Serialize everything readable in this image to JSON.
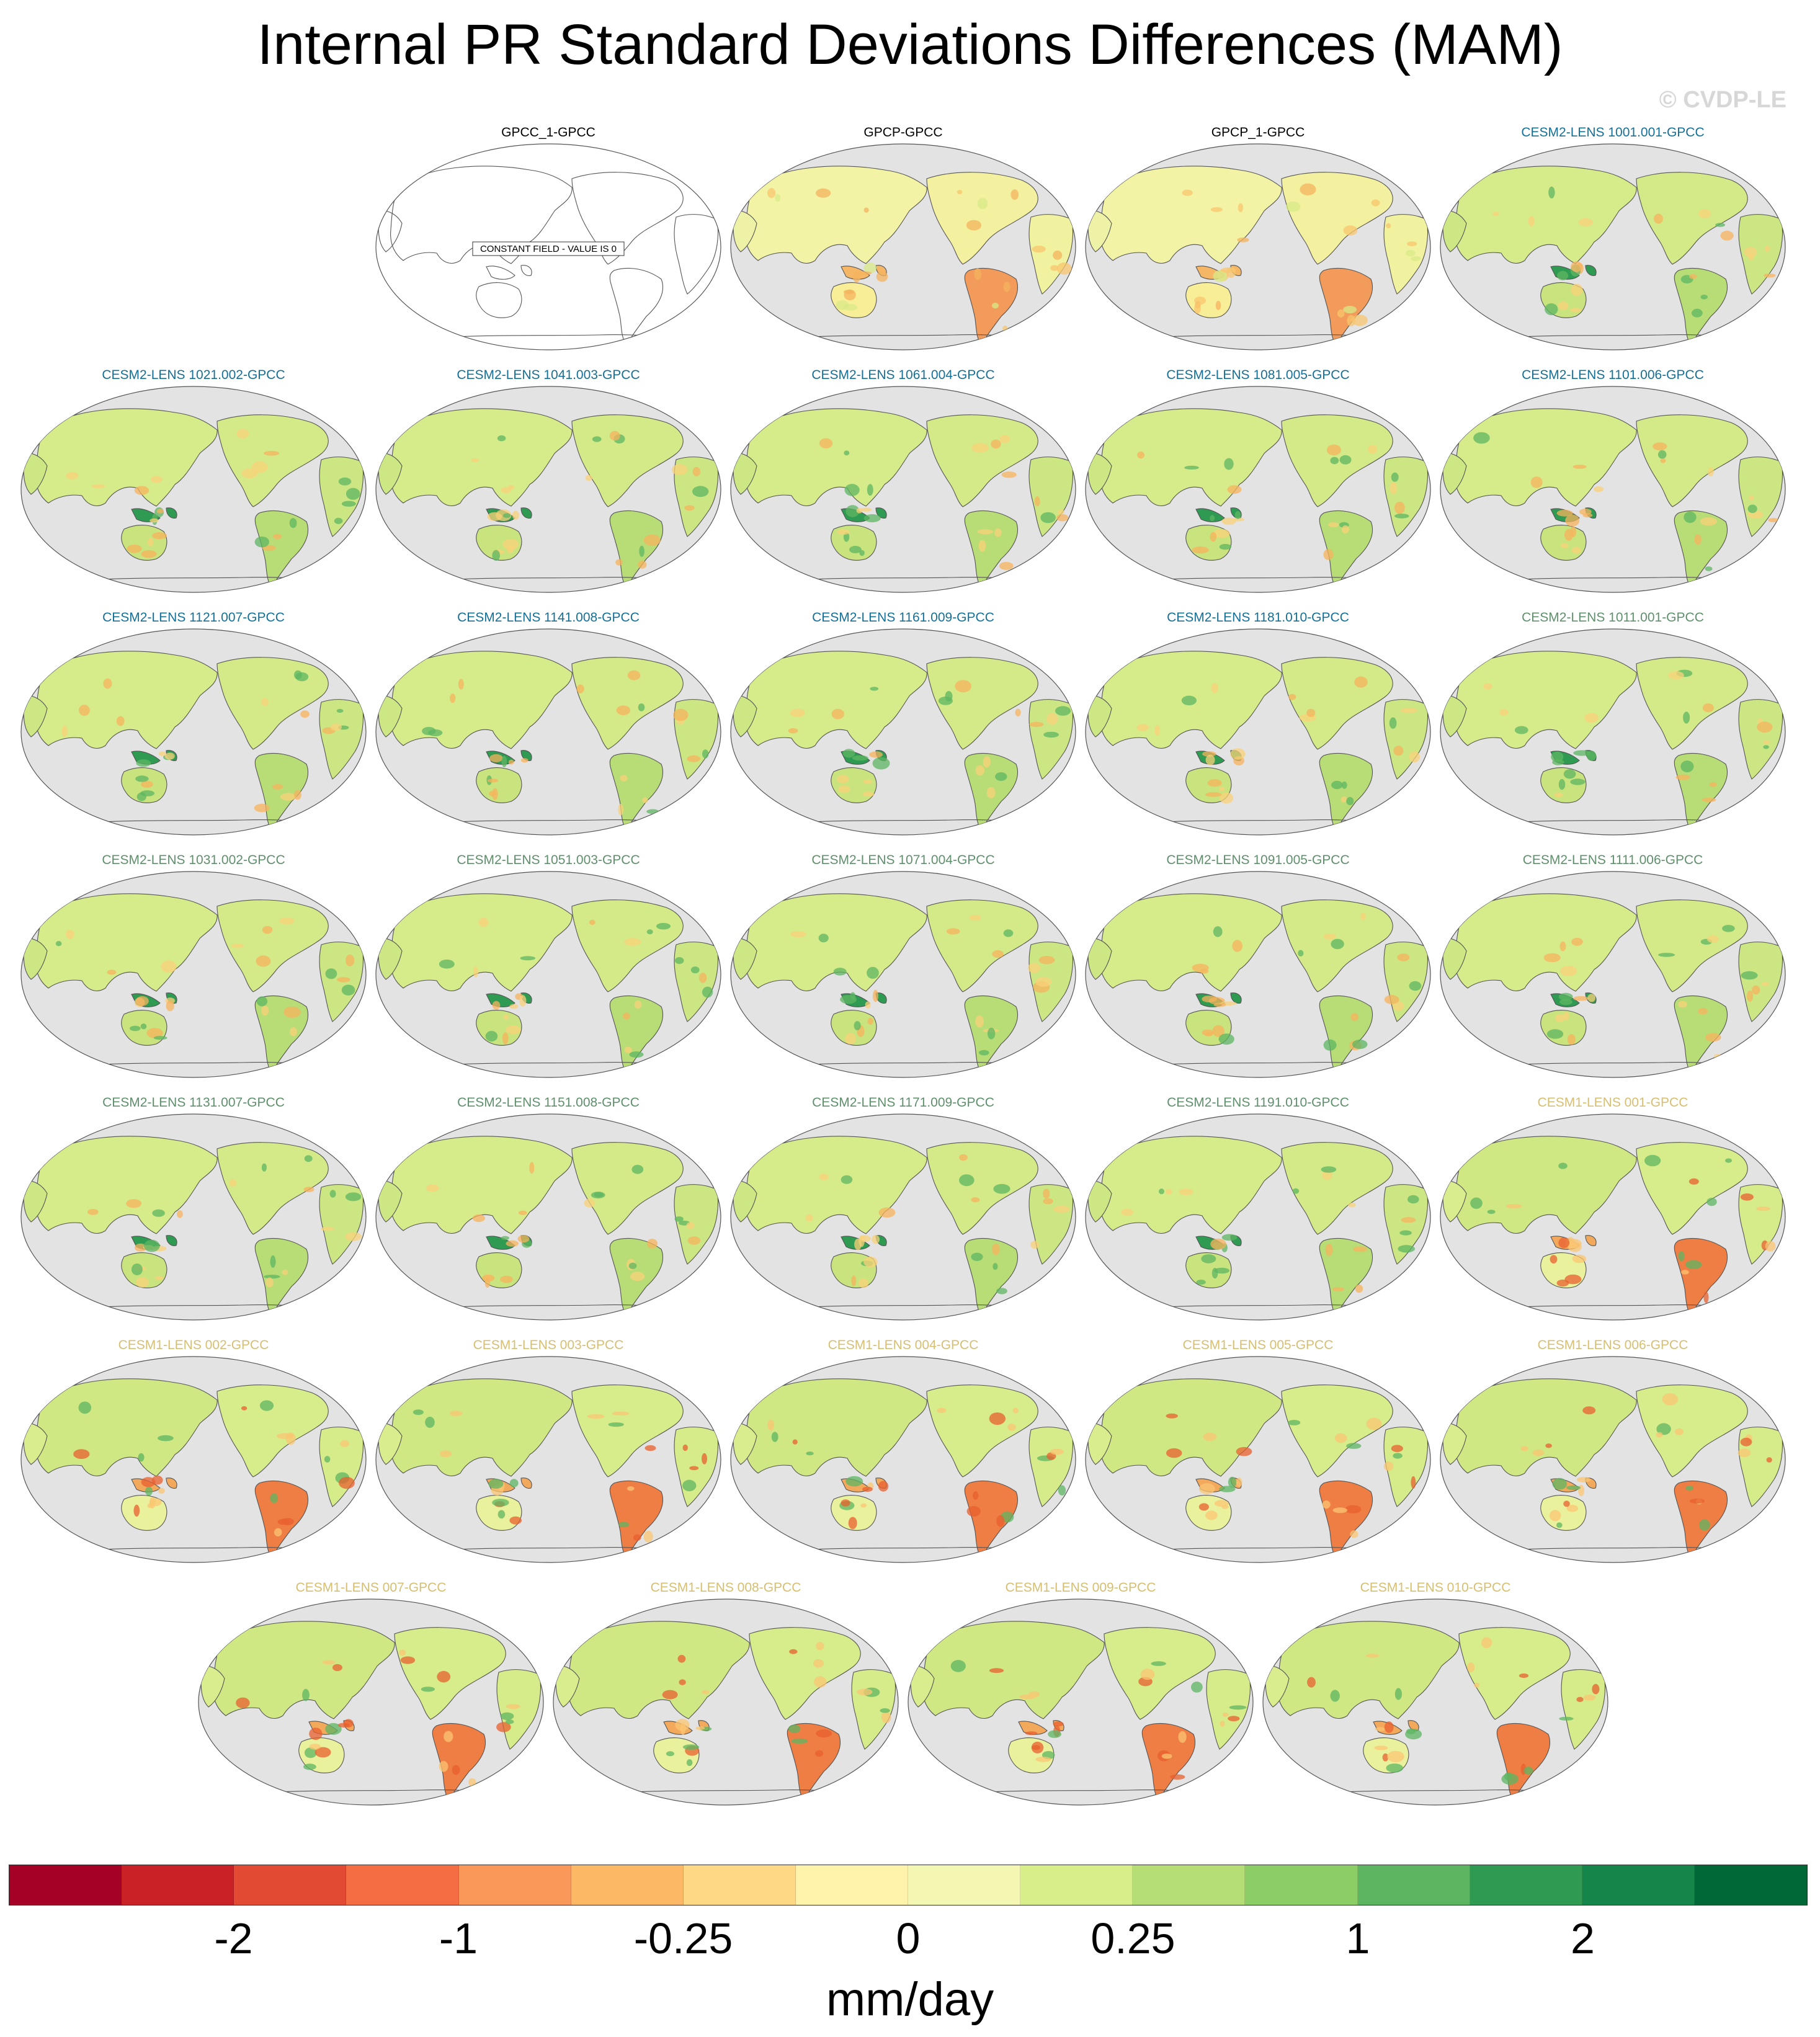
{
  "title": "Internal PR Standard Deviations Differences (MAM)",
  "copyright": "© CVDP-LE",
  "colors": {
    "ocean": "#e3e3e3",
    "coast": "#555555",
    "group_obs": "#000000",
    "group_cesm2_a": "#156f96",
    "group_cesm2_b": "#5f8f6c",
    "group_cesm1": "#d6be72"
  },
  "panels": [
    {
      "title": "GPCC_1-GPCC",
      "group": "obs",
      "style": "constant",
      "constant_label": "CONSTANT FIELD - VALUE IS 0"
    },
    {
      "title": "GPCP-GPCC",
      "group": "obs",
      "style": "obs"
    },
    {
      "title": "GPCP_1-GPCC",
      "group": "obs",
      "style": "obs"
    },
    {
      "title": "CESM2-LENS 1001.001-GPCC",
      "group": "cesm2_a",
      "style": "cesm2"
    },
    {
      "title": "CESM2-LENS 1021.002-GPCC",
      "group": "cesm2_a",
      "style": "cesm2"
    },
    {
      "title": "CESM2-LENS 1041.003-GPCC",
      "group": "cesm2_a",
      "style": "cesm2"
    },
    {
      "title": "CESM2-LENS 1061.004-GPCC",
      "group": "cesm2_a",
      "style": "cesm2"
    },
    {
      "title": "CESM2-LENS 1081.005-GPCC",
      "group": "cesm2_a",
      "style": "cesm2"
    },
    {
      "title": "CESM2-LENS 1101.006-GPCC",
      "group": "cesm2_a",
      "style": "cesm2"
    },
    {
      "title": "CESM2-LENS 1121.007-GPCC",
      "group": "cesm2_a",
      "style": "cesm2"
    },
    {
      "title": "CESM2-LENS 1141.008-GPCC",
      "group": "cesm2_a",
      "style": "cesm2"
    },
    {
      "title": "CESM2-LENS 1161.009-GPCC",
      "group": "cesm2_a",
      "style": "cesm2"
    },
    {
      "title": "CESM2-LENS 1181.010-GPCC",
      "group": "cesm2_a",
      "style": "cesm2"
    },
    {
      "title": "CESM2-LENS 1011.001-GPCC",
      "group": "cesm2_b",
      "style": "cesm2"
    },
    {
      "title": "CESM2-LENS 1031.002-GPCC",
      "group": "cesm2_b",
      "style": "cesm2"
    },
    {
      "title": "CESM2-LENS 1051.003-GPCC",
      "group": "cesm2_b",
      "style": "cesm2"
    },
    {
      "title": "CESM2-LENS 1071.004-GPCC",
      "group": "cesm2_b",
      "style": "cesm2"
    },
    {
      "title": "CESM2-LENS 1091.005-GPCC",
      "group": "cesm2_b",
      "style": "cesm2"
    },
    {
      "title": "CESM2-LENS 1111.006-GPCC",
      "group": "cesm2_b",
      "style": "cesm2"
    },
    {
      "title": "CESM2-LENS 1131.007-GPCC",
      "group": "cesm2_b",
      "style": "cesm2"
    },
    {
      "title": "CESM2-LENS 1151.008-GPCC",
      "group": "cesm2_b",
      "style": "cesm2"
    },
    {
      "title": "CESM2-LENS 1171.009-GPCC",
      "group": "cesm2_b",
      "style": "cesm2"
    },
    {
      "title": "CESM2-LENS 1191.010-GPCC",
      "group": "cesm2_b",
      "style": "cesm2"
    },
    {
      "title": "CESM1-LENS 001-GPCC",
      "group": "cesm1",
      "style": "cesm1"
    },
    {
      "title": "CESM1-LENS 002-GPCC",
      "group": "cesm1",
      "style": "cesm1"
    },
    {
      "title": "CESM1-LENS 003-GPCC",
      "group": "cesm1",
      "style": "cesm1"
    },
    {
      "title": "CESM1-LENS 004-GPCC",
      "group": "cesm1",
      "style": "cesm1"
    },
    {
      "title": "CESM1-LENS 005-GPCC",
      "group": "cesm1",
      "style": "cesm1"
    },
    {
      "title": "CESM1-LENS 006-GPCC",
      "group": "cesm1",
      "style": "cesm1"
    },
    {
      "title": "CESM1-LENS 007-GPCC",
      "group": "cesm1",
      "style": "cesm1"
    },
    {
      "title": "CESM1-LENS 008-GPCC",
      "group": "cesm1",
      "style": "cesm1"
    },
    {
      "title": "CESM1-LENS 009-GPCC",
      "group": "cesm1",
      "style": "cesm1"
    },
    {
      "title": "CESM1-LENS 010-GPCC",
      "group": "cesm1",
      "style": "cesm1"
    }
  ],
  "colorbar": {
    "colors": [
      "#a50026",
      "#c92126",
      "#e34a33",
      "#f46d43",
      "#f99858",
      "#fdb865",
      "#fed884",
      "#fff2aa",
      "#f3f7b1",
      "#d8ee8a",
      "#b6de76",
      "#8ccd66",
      "#5db562",
      "#2f9b52",
      "#16854a",
      "#006837"
    ],
    "labels": [
      "-2",
      "-1",
      "-0.25",
      "0",
      "0.25",
      "1",
      "2"
    ],
    "units": "mm/day"
  }
}
